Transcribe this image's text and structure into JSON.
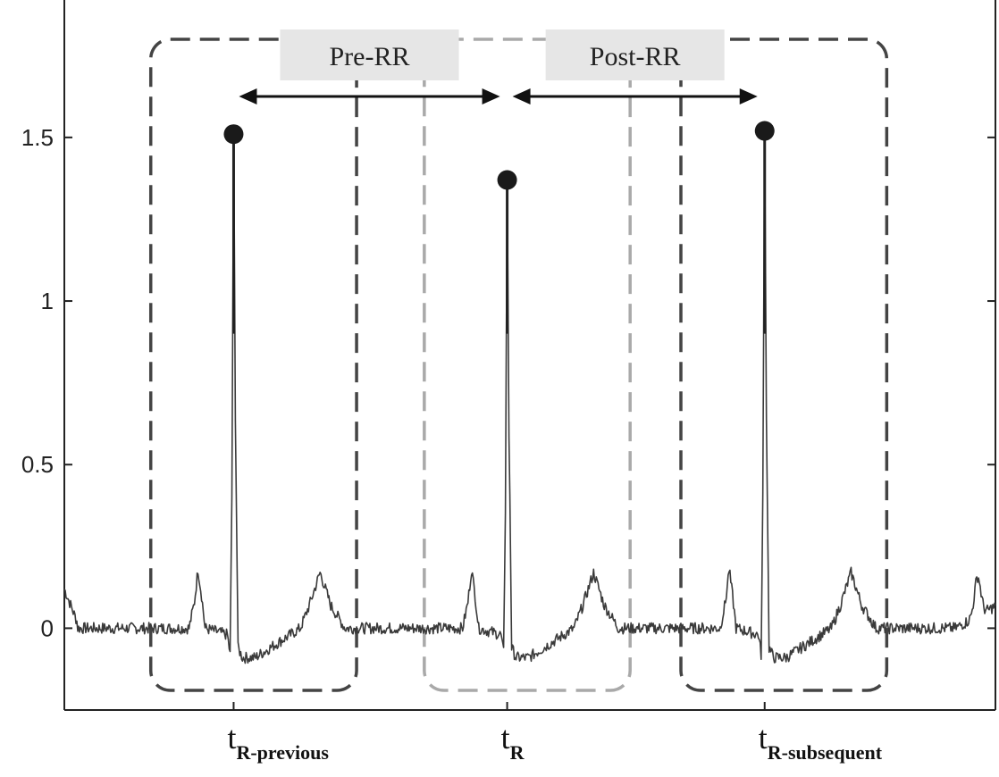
{
  "chart_data": {
    "type": "line",
    "title": "",
    "xlabel": "",
    "ylabel": "",
    "ylim": [
      -0.25,
      1.92
    ],
    "yticks": [
      {
        "value": 0,
        "label": "0"
      },
      {
        "value": 0.5,
        "label": "0.5"
      },
      {
        "value": 1,
        "label": "1"
      },
      {
        "value": 1.5,
        "label": "1.5"
      }
    ],
    "grid": false,
    "colors": {
      "signal": "#3a3a3a",
      "peak_marker": "#1a1a1a",
      "outer_window": "#444444",
      "center_window": "#a9a9a9",
      "arrow": "#111111",
      "label_box": "#e6e6e6"
    },
    "r_peaks": [
      {
        "id": "previous",
        "sample": 190,
        "value": 1.51,
        "tick_label": "t",
        "tick_subscript": "R-previous"
      },
      {
        "id": "current",
        "sample": 497,
        "value": 1.37,
        "tick_label": "t",
        "tick_subscript": "R"
      },
      {
        "id": "subsequent",
        "sample": 786,
        "value": 1.52,
        "tick_label": "t",
        "tick_subscript": "R-subsequent"
      }
    ],
    "intervals": [
      {
        "name": "Pre-RR",
        "from": "previous",
        "to": "current"
      },
      {
        "name": "Post-RR",
        "from": "current",
        "to": "subsequent"
      }
    ],
    "windows": [
      {
        "id": "previous-beat",
        "style": "outer",
        "x_start": 97,
        "x_end": 328,
        "y_bottom": -0.19,
        "y_top": 1.8
      },
      {
        "id": "current-beat",
        "style": "center",
        "x_start": 404,
        "x_end": 635,
        "y_bottom": -0.19,
        "y_top": 1.8
      },
      {
        "id": "subsequent-beat",
        "style": "outer",
        "x_start": 692,
        "x_end": 923,
        "y_bottom": -0.19,
        "y_top": 1.8
      }
    ],
    "beat_template": [
      {
        "dt": -50,
        "v": 0.0
      },
      {
        "dt": -44,
        "v": 0.08
      },
      {
        "dt": -40,
        "v": 0.18
      },
      {
        "dt": -36,
        "v": 0.1
      },
      {
        "dt": -32,
        "v": 0.0
      },
      {
        "dt": -7,
        "v": -0.02
      },
      {
        "dt": -4,
        "v": -0.08
      },
      {
        "dt": -2,
        "v": 0.4
      },
      {
        "dt": 0,
        "v": 1.51
      },
      {
        "dt": 2,
        "v": 0.65
      },
      {
        "dt": 5,
        "v": -0.06
      },
      {
        "dt": 10,
        "v": -0.09
      },
      {
        "dt": 24,
        "v": -0.09
      },
      {
        "dt": 75,
        "v": 0.0
      },
      {
        "dt": 85,
        "v": 0.07
      },
      {
        "dt": 97,
        "v": 0.17
      },
      {
        "dt": 109,
        "v": 0.07
      },
      {
        "dt": 125,
        "v": 0.0
      }
    ],
    "x_samples": 1045
  }
}
